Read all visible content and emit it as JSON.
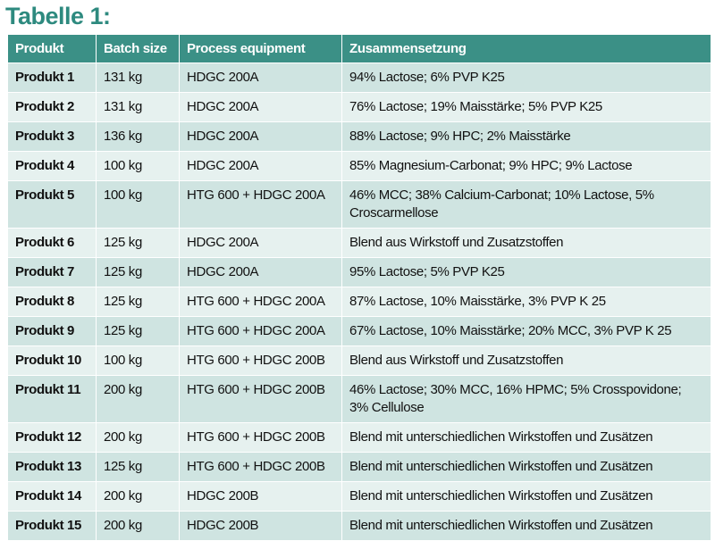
{
  "title": "Tabelle 1:",
  "table": {
    "columns": [
      "Produkt",
      "Batch size",
      "Process equipment",
      "Zusammensetzung"
    ],
    "rows": [
      [
        "Produkt 1",
        "131 kg",
        "HDGC 200A",
        "94% Lactose; 6% PVP K25"
      ],
      [
        "Produkt 2",
        "131 kg",
        "HDGC 200A",
        "76% Lactose; 19% Maisstärke; 5% PVP K25"
      ],
      [
        "Produkt 3",
        "136 kg",
        "HDGC 200A",
        "88% Lactose; 9% HPC; 2% Maisstärke"
      ],
      [
        "Produkt 4",
        "100 kg",
        "HDGC 200A",
        "85% Magnesium-Carbonat; 9% HPC; 9% Lactose"
      ],
      [
        "Produkt 5",
        "100 kg",
        "HTG 600 + HDGC 200A",
        "46% MCC; 38% Calcium-Carbonat; 10% Lactose, 5% Croscarmellose"
      ],
      [
        "Produkt 6",
        "125 kg",
        "HDGC 200A",
        "Blend aus Wirkstoff und Zusatzstoffen"
      ],
      [
        "Produkt 7",
        "125 kg",
        "HDGC 200A",
        "95% Lactose; 5% PVP K25"
      ],
      [
        "Produkt 8",
        "125 kg",
        "HTG 600 + HDGC 200A",
        "87% Lactose, 10% Maisstärke, 3% PVP K 25"
      ],
      [
        "Produkt 9",
        "125 kg",
        "HTG 600 + HDGC 200A",
        "67% Lactose, 10% Maisstärke; 20% MCC, 3% PVP K 25"
      ],
      [
        "Produkt 10",
        "100 kg",
        "HTG 600 + HDGC 200B",
        "Blend aus Wirkstoff und Zusatzstoffen"
      ],
      [
        "Produkt 11",
        "200 kg",
        "HTG 600 + HDGC 200B",
        "46% Lactose; 30% MCC, 16% HPMC; 5% Crosspovidone; 3% Cellulose"
      ],
      [
        "Produkt 12",
        "200 kg",
        "HTG 600 + HDGC 200B",
        "Blend mit unterschiedlichen Wirkstoffen und Zusätzen"
      ],
      [
        "Produkt 13",
        "125 kg",
        "HTG 600 + HDGC 200B",
        "Blend mit unterschiedlichen Wirkstoffen und Zusätzen"
      ],
      [
        "Produkt 14",
        "200 kg",
        "HDGC 200B",
        "Blend mit unterschiedlichen Wirkstoffen und Zusätzen"
      ],
      [
        "Produkt 15",
        "200 kg",
        "HDGC 200B",
        "Blend mit unterschiedlichen Wirkstoffen und Zusätzen"
      ]
    ]
  }
}
